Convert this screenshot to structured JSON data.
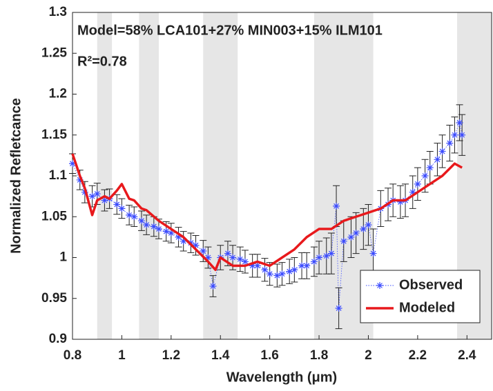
{
  "chart_data": {
    "type": "scatter",
    "annotations": [
      "Model=58% LCA101+27% MIN003+15% ILM101",
      "R²=0.78"
    ],
    "xlabel": "Wavelength (μm)",
    "ylabel": "Normalized Refletcance",
    "xlim": [
      0.8,
      2.5
    ],
    "ylim": [
      0.9,
      1.3
    ],
    "xticks": [
      0.8,
      1,
      1.2,
      1.4,
      1.6,
      1.8,
      2,
      2.2,
      2.4
    ],
    "yticks": [
      0.9,
      0.95,
      1,
      1.05,
      1.1,
      1.15,
      1.2,
      1.25,
      1.3
    ],
    "shaded_regions": [
      [
        0.9,
        0.96
      ],
      [
        1.07,
        1.15
      ],
      [
        1.33,
        1.47
      ],
      [
        1.78,
        2.02
      ],
      [
        2.36,
        2.5
      ]
    ],
    "legend": "lower right",
    "series": [
      {
        "name": "Observed",
        "color": "#3b4bff",
        "x": [
          0.8,
          0.83,
          0.85,
          0.88,
          0.9,
          0.93,
          0.95,
          0.98,
          1.0,
          1.03,
          1.05,
          1.08,
          1.1,
          1.13,
          1.15,
          1.18,
          1.2,
          1.23,
          1.25,
          1.28,
          1.3,
          1.33,
          1.35,
          1.37,
          1.4,
          1.43,
          1.45,
          1.48,
          1.5,
          1.53,
          1.55,
          1.58,
          1.6,
          1.63,
          1.65,
          1.68,
          1.7,
          1.73,
          1.75,
          1.78,
          1.8,
          1.83,
          1.85,
          1.87,
          1.88,
          1.9,
          1.93,
          1.95,
          1.98,
          2.0,
          2.02,
          2.05,
          2.08,
          2.1,
          2.13,
          2.15,
          2.18,
          2.2,
          2.23,
          2.25,
          2.28,
          2.3,
          2.33,
          2.35,
          2.37,
          2.38
        ],
        "values": [
          1.115,
          1.095,
          1.08,
          1.075,
          1.078,
          1.07,
          1.072,
          1.065,
          1.06,
          1.052,
          1.05,
          1.045,
          1.04,
          1.038,
          1.035,
          1.032,
          1.03,
          1.025,
          1.02,
          1.018,
          1.015,
          1.008,
          1.0,
          0.965,
          1.0,
          1.005,
          1.0,
          0.998,
          0.995,
          0.99,
          0.99,
          0.985,
          0.98,
          0.978,
          0.98,
          0.983,
          0.985,
          0.99,
          0.99,
          0.995,
          1.0,
          1.002,
          1.005,
          1.063,
          0.938,
          1.02,
          1.025,
          1.03,
          1.035,
          1.04,
          1.005,
          1.06,
          1.065,
          1.07,
          1.068,
          1.07,
          1.08,
          1.09,
          1.1,
          1.11,
          1.12,
          1.13,
          1.14,
          1.15,
          1.165,
          1.15
        ],
        "errors": [
          0.012,
          0.012,
          0.013,
          0.013,
          0.013,
          0.013,
          0.012,
          0.012,
          0.012,
          0.012,
          0.012,
          0.012,
          0.012,
          0.012,
          0.012,
          0.012,
          0.012,
          0.012,
          0.012,
          0.012,
          0.012,
          0.013,
          0.013,
          0.013,
          0.015,
          0.015,
          0.015,
          0.015,
          0.014,
          0.014,
          0.014,
          0.014,
          0.014,
          0.014,
          0.014,
          0.015,
          0.015,
          0.016,
          0.016,
          0.018,
          0.02,
          0.022,
          0.025,
          0.025,
          0.025,
          0.025,
          0.025,
          0.025,
          0.025,
          0.025,
          0.03,
          0.022,
          0.02,
          0.02,
          0.02,
          0.02,
          0.02,
          0.02,
          0.02,
          0.02,
          0.02,
          0.02,
          0.022,
          0.022,
          0.022,
          0.025
        ]
      },
      {
        "name": "Modeled",
        "color": "#e8191c",
        "x": [
          0.8,
          0.83,
          0.85,
          0.88,
          0.9,
          0.93,
          0.95,
          0.98,
          1.0,
          1.03,
          1.05,
          1.08,
          1.1,
          1.15,
          1.2,
          1.25,
          1.3,
          1.35,
          1.38,
          1.4,
          1.45,
          1.5,
          1.55,
          1.6,
          1.65,
          1.7,
          1.75,
          1.8,
          1.85,
          1.9,
          1.95,
          2.0,
          2.05,
          2.1,
          2.15,
          2.2,
          2.25,
          2.3,
          2.35,
          2.38
        ],
        "values": [
          1.127,
          1.1,
          1.085,
          1.052,
          1.07,
          1.075,
          1.072,
          1.082,
          1.09,
          1.072,
          1.07,
          1.06,
          1.058,
          1.045,
          1.035,
          1.025,
          1.01,
          0.995,
          0.985,
          1.0,
          0.99,
          0.99,
          0.995,
          0.99,
          1.0,
          1.01,
          1.025,
          1.035,
          1.035,
          1.045,
          1.05,
          1.055,
          1.06,
          1.07,
          1.07,
          1.08,
          1.09,
          1.1,
          1.115,
          1.11
        ]
      }
    ]
  }
}
